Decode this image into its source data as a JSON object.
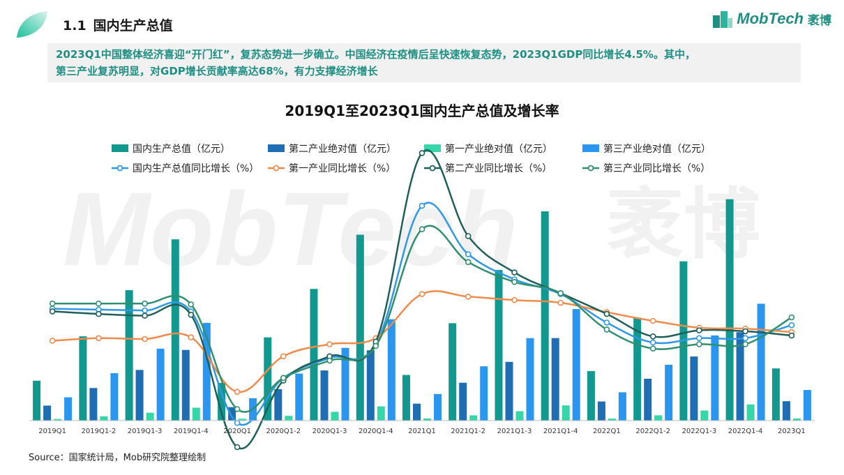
{
  "header": {
    "section_number": "1.1",
    "section_title": "国内生产总值",
    "brand_name": "MobTech",
    "brand_cn": "袤博"
  },
  "summary": {
    "line1": "2023Q1中国整体经济喜迎“开门红”，复苏态势进一步确立。中国经济在疫情后呈快速恢复态势，2023Q1GDP同比增长4.5%。其中，",
    "line2": "第三产业复苏明显，对GDP增长贡献率高达68%，有力支撑经济增长"
  },
  "source": "Source：国家统计局，Mob研究院整理绘制",
  "colors": {
    "gdp_bar": "#12988f",
    "secondary_bar": "#1f6db3",
    "primary_bar": "#36d6a8",
    "tertiary_bar": "#2a96f0",
    "gdp_growth": "#2f98e6",
    "primary_growth": "#f08a4b",
    "secondary_growth": "#1f5f5a",
    "tertiary_growth": "#2f8f6e",
    "accent": "#1f8f83"
  },
  "chart_data": {
    "type": "bar",
    "title": "2019Q1至2023Q1国内生产总值及增长率",
    "categories": [
      "2019Q1",
      "2019Q1-2",
      "2019Q1-3",
      "2019Q1-4",
      "2020Q1",
      "2020Q1-2",
      "2020Q1-3",
      "2020Q1-4",
      "2021Q1",
      "2021Q1-2",
      "2021Q1-3",
      "2021Q1-4",
      "2022Q1",
      "2022Q1-2",
      "2022Q1-3",
      "2022Q1-4",
      "2023Q1"
    ],
    "bar_series": [
      {
        "name": "国内生产总值（亿元）",
        "values": [
          218063,
          460636,
          712845,
          990865,
          205727,
          454712,
          719688,
          1015986,
          249310,
          532167,
          823131,
          1143670,
          270178,
          562642,
          870269,
          1210207,
          284997
        ]
      },
      {
        "name": "第二产业绝对值（亿元）",
        "values": [
          81806,
          178122,
          276912,
          386165,
          73638,
          171759,
          274267,
          384255,
          92623,
          207154,
          320940,
          450904,
          104271,
          228636,
          350189,
          483164,
          106052
        ]
      },
      {
        "name": "第一产业绝对值（亿元）",
        "values": [
          8769,
          23207,
          43005,
          70467,
          10186,
          26053,
          48123,
          77754,
          11332,
          28402,
          51430,
          83086,
          10954,
          29137,
          54779,
          88345,
          11575
        ]
      },
      {
        "name": "第三产业绝对值（亿元）",
        "values": [
          127487,
          259307,
          392928,
          534233,
          121903,
          256900,
          397298,
          553977,
          145355,
          296611,
          450761,
          609680,
          154953,
          304869,
          465301,
          638698,
          167370
        ]
      }
    ],
    "line_series": [
      {
        "name": "国内生产总值同比增长（%）",
        "values": [
          6.4,
          6.3,
          6.2,
          6.1,
          -6.8,
          -1.6,
          0.7,
          2.3,
          18.3,
          12.7,
          9.8,
          8.1,
          4.8,
          2.5,
          3.0,
          3.0,
          4.5
        ]
      },
      {
        "name": "第一产业同比增长（%）",
        "values": [
          2.7,
          3.0,
          2.9,
          3.1,
          -3.2,
          0.9,
          2.3,
          3.0,
          8.1,
          7.8,
          7.4,
          7.1,
          6.0,
          5.0,
          4.2,
          4.1,
          3.7
        ]
      },
      {
        "name": "第二产业同比增长（%）",
        "values": [
          6.1,
          5.8,
          5.6,
          5.7,
          -9.6,
          -1.9,
          0.9,
          2.6,
          24.4,
          14.8,
          10.6,
          8.2,
          5.8,
          3.2,
          3.9,
          3.8,
          3.3
        ]
      },
      {
        "name": "第三产业同比增长（%）",
        "values": [
          7.0,
          7.0,
          7.0,
          6.9,
          -5.2,
          -1.6,
          0.4,
          2.1,
          15.6,
          11.8,
          9.5,
          8.2,
          4.0,
          1.8,
          2.3,
          2.3,
          5.4
        ]
      }
    ],
    "xlabel": "",
    "ylabel": "",
    "legend_position": "top",
    "grid": false,
    "bar_ylim": [
      0,
      1300000
    ],
    "line_ylim": [
      -20,
      30
    ]
  }
}
